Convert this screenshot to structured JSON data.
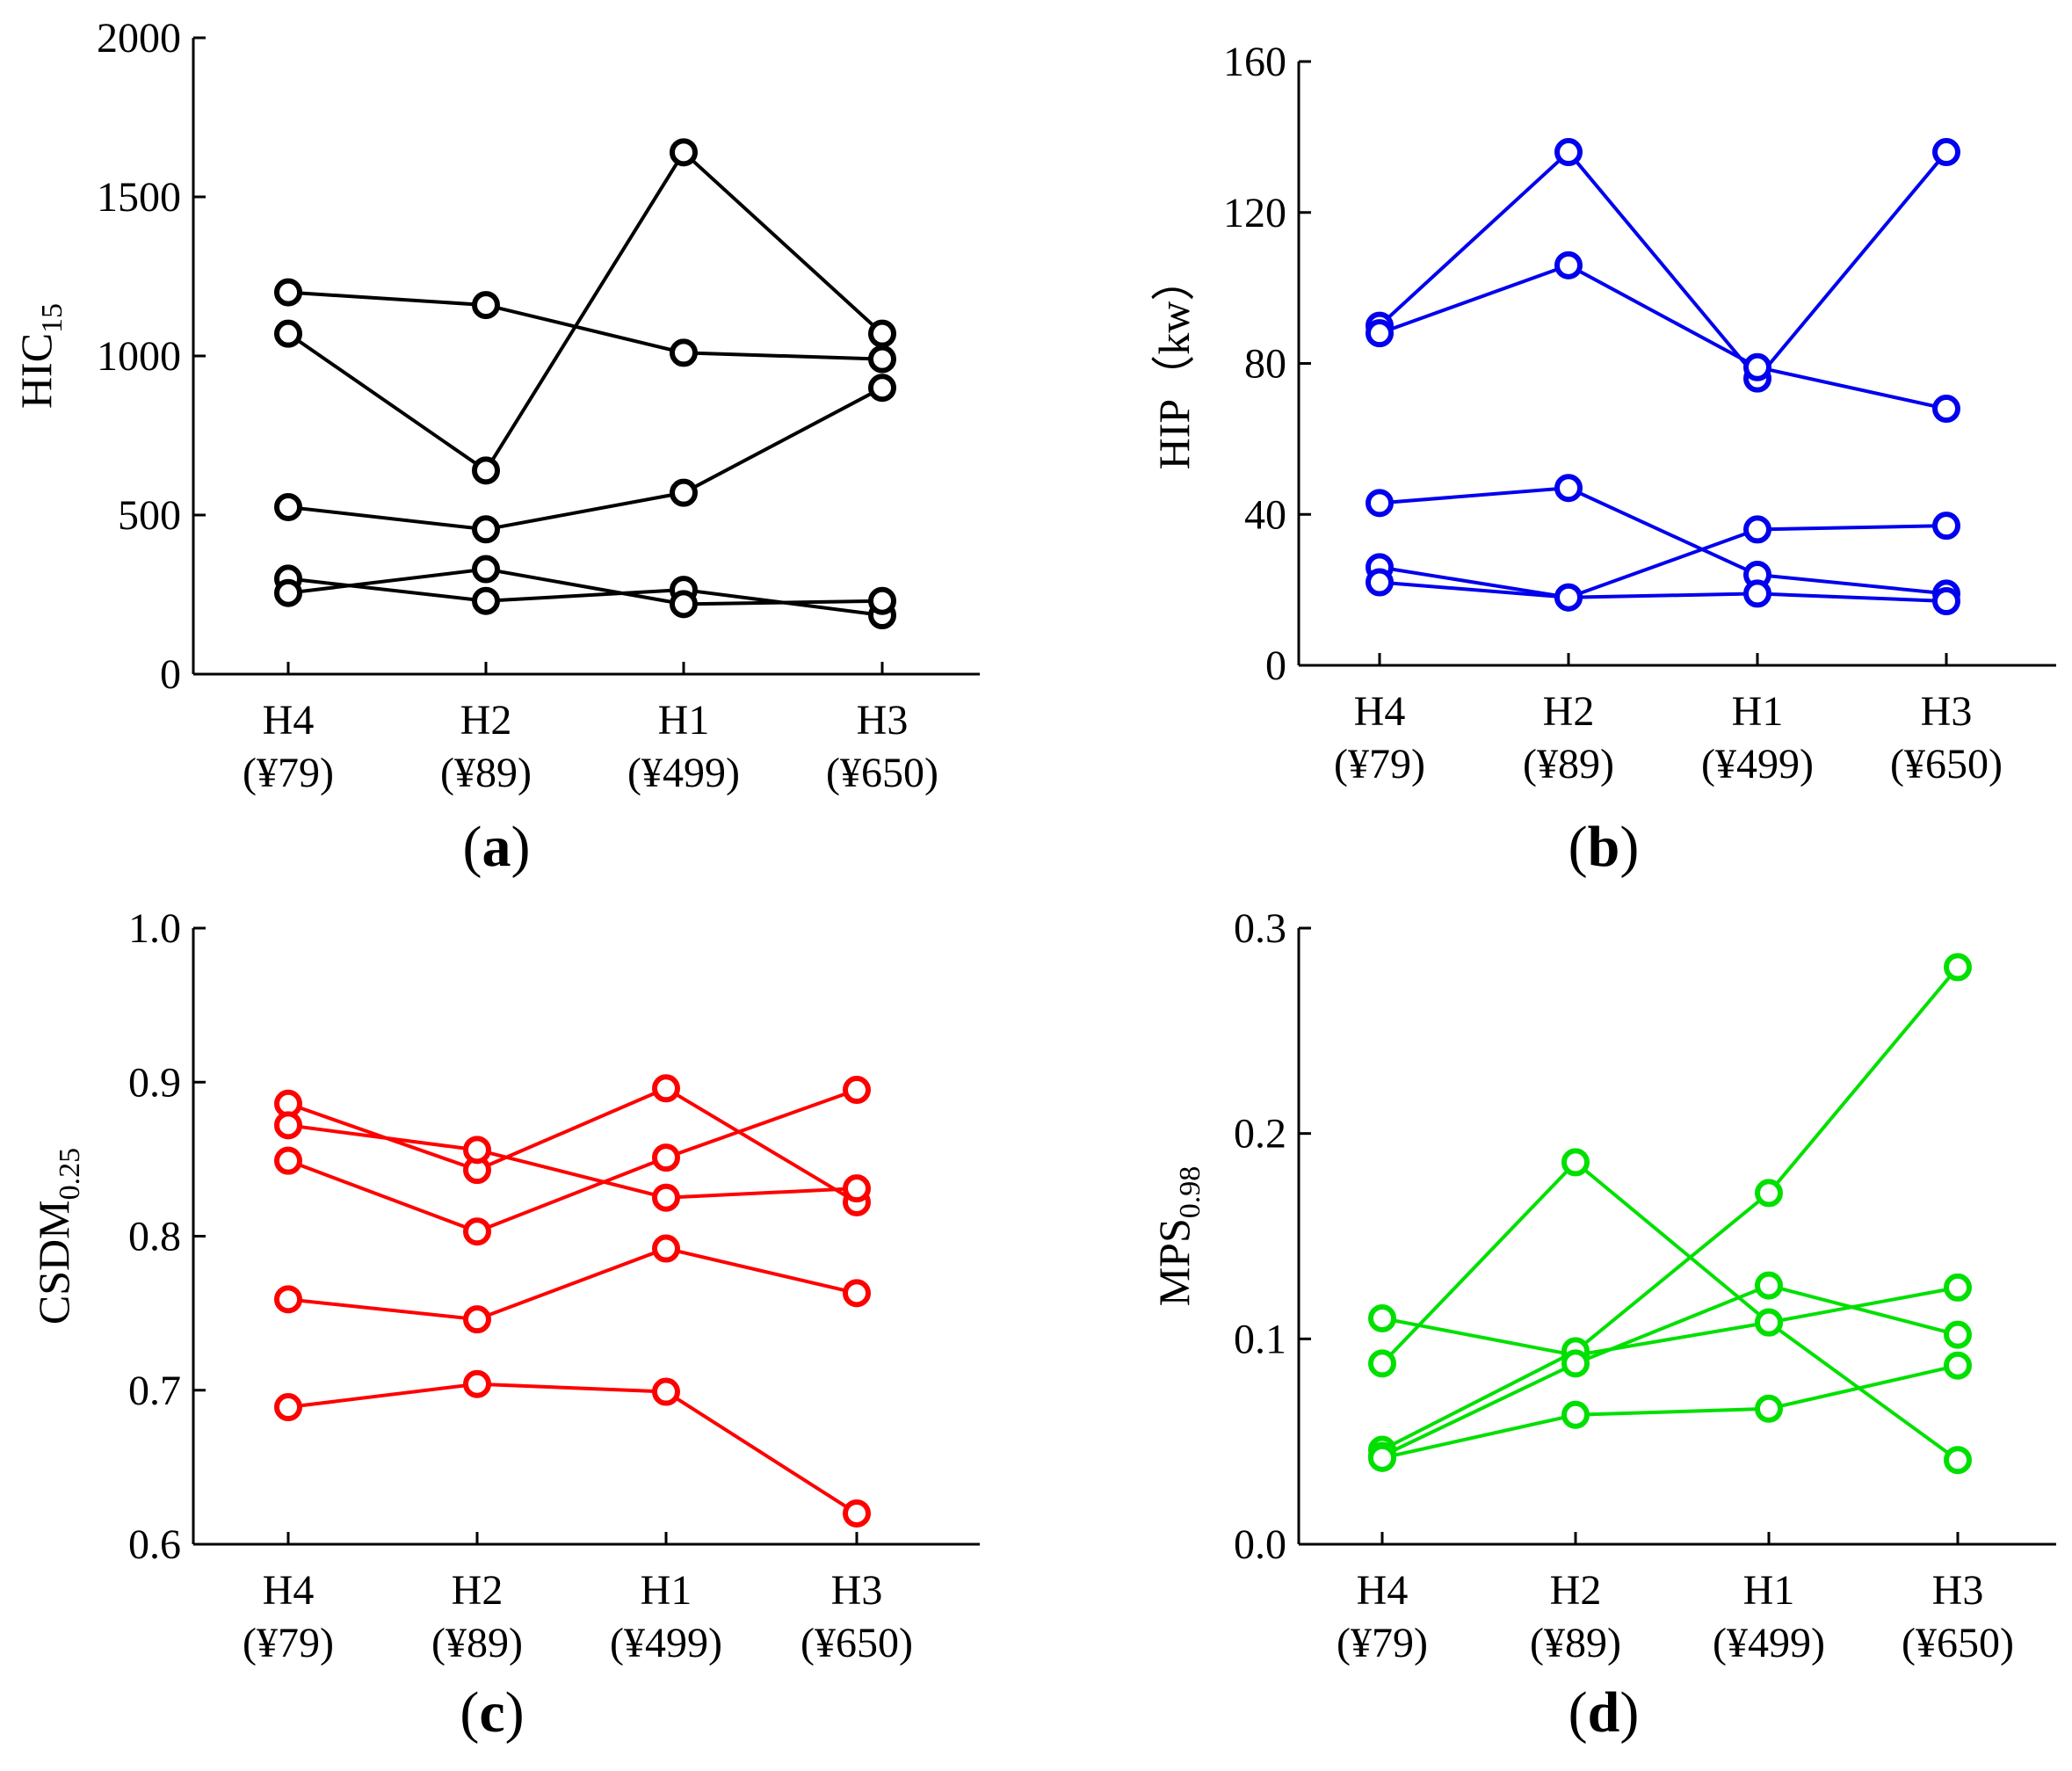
{
  "chart_data": [
    {
      "type": "line",
      "panel_label": {
        "open": "(",
        "letter": "a",
        "close": ")"
      },
      "ylabel": {
        "main": "HIC",
        "sub": "15",
        "suffix": ""
      },
      "color": "#000000",
      "ylim": [
        0,
        2000
      ],
      "yticks": [
        0,
        500,
        1000,
        1500,
        2000
      ],
      "ytick_labels": [
        "0",
        "500",
        "1000",
        "1500",
        "2000"
      ],
      "categories": [
        {
          "name": "H4",
          "price": "(¥79)"
        },
        {
          "name": "H2",
          "price": "(¥89)"
        },
        {
          "name": "H1",
          "price": "(¥499)"
        },
        {
          "name": "H3",
          "price": "(¥650)"
        }
      ],
      "series": [
        {
          "values": [
            1200,
            1160,
            1010,
            990
          ]
        },
        {
          "values": [
            1070,
            640,
            1640,
            1070
          ]
        },
        {
          "values": [
            525,
            455,
            570,
            900
          ]
        },
        {
          "values": [
            300,
            230,
            265,
            185
          ]
        },
        {
          "values": [
            255,
            330,
            220,
            230
          ]
        }
      ]
    },
    {
      "type": "line",
      "panel_label": {
        "open": "(",
        "letter": "b",
        "close": ")"
      },
      "ylabel": {
        "main": "HIP",
        "sub": "",
        "suffix": "（kw）"
      },
      "color": "#0000ee",
      "ylim": [
        0,
        160
      ],
      "yticks": [
        0,
        40,
        80,
        120,
        160
      ],
      "ytick_labels": [
        "0",
        "40",
        "80",
        "120",
        "160"
      ],
      "categories": [
        {
          "name": "H4",
          "price": "(¥79)"
        },
        {
          "name": "H2",
          "price": "(¥89)"
        },
        {
          "name": "H1",
          "price": "(¥499)"
        },
        {
          "name": "H3",
          "price": "(¥650)"
        }
      ],
      "series": [
        {
          "values": [
            90,
            136,
            76,
            136
          ]
        },
        {
          "values": [
            88,
            106,
            79,
            68
          ]
        },
        {
          "values": [
            43,
            47,
            24,
            19
          ]
        },
        {
          "values": [
            26,
            18,
            36,
            37
          ]
        },
        {
          "values": [
            22,
            18,
            19,
            17
          ]
        }
      ]
    },
    {
      "type": "line",
      "panel_label": {
        "open": "(",
        "letter": "c",
        "close": ")"
      },
      "ylabel": {
        "main": "CSDM",
        "sub": "0.25",
        "suffix": ""
      },
      "color": "#ff0000",
      "ylim": [
        0.6,
        1.0
      ],
      "yticks": [
        0.6,
        0.7,
        0.8,
        0.9,
        1.0
      ],
      "ytick_labels": [
        "0.6",
        "0.7",
        "0.8",
        "0.9",
        "1.0"
      ],
      "categories": [
        {
          "name": "H4",
          "price": "(¥79)"
        },
        {
          "name": "H2",
          "price": "(¥89)"
        },
        {
          "name": "H1",
          "price": "(¥499)"
        },
        {
          "name": "H3",
          "price": "(¥650)"
        }
      ],
      "series": [
        {
          "values": [
            0.886,
            0.843,
            0.896,
            0.822
          ]
        },
        {
          "values": [
            0.872,
            0.856,
            0.825,
            0.831
          ]
        },
        {
          "values": [
            0.849,
            0.803,
            0.851,
            0.895
          ]
        },
        {
          "values": [
            0.759,
            0.746,
            0.792,
            0.763
          ]
        },
        {
          "values": [
            0.689,
            0.704,
            0.699,
            0.62
          ]
        }
      ]
    },
    {
      "type": "line",
      "panel_label": {
        "open": "(",
        "letter": "d",
        "close": ")"
      },
      "ylabel": {
        "main": "MPS",
        "sub": "0.98",
        "suffix": ""
      },
      "color": "#00e000",
      "ylim": [
        0.0,
        0.3
      ],
      "yticks": [
        0.0,
        0.1,
        0.2,
        0.3
      ],
      "ytick_labels": [
        "0.0",
        "0.1",
        "0.2",
        "0.3"
      ],
      "categories": [
        {
          "name": "H4",
          "price": "(¥79)"
        },
        {
          "name": "H2",
          "price": "(¥89)"
        },
        {
          "name": "H1",
          "price": "(¥499)"
        },
        {
          "name": "H3",
          "price": "(¥650)"
        }
      ],
      "series": [
        {
          "values": [
            0.11,
            0.092,
            0.108,
            0.125
          ]
        },
        {
          "values": [
            0.088,
            0.186,
            0.108,
            0.041
          ]
        },
        {
          "values": [
            0.046,
            0.094,
            0.171,
            0.281
          ]
        },
        {
          "values": [
            0.043,
            0.088,
            0.126,
            0.102
          ]
        },
        {
          "values": [
            0.042,
            0.063,
            0.066,
            0.087
          ]
        }
      ]
    }
  ]
}
